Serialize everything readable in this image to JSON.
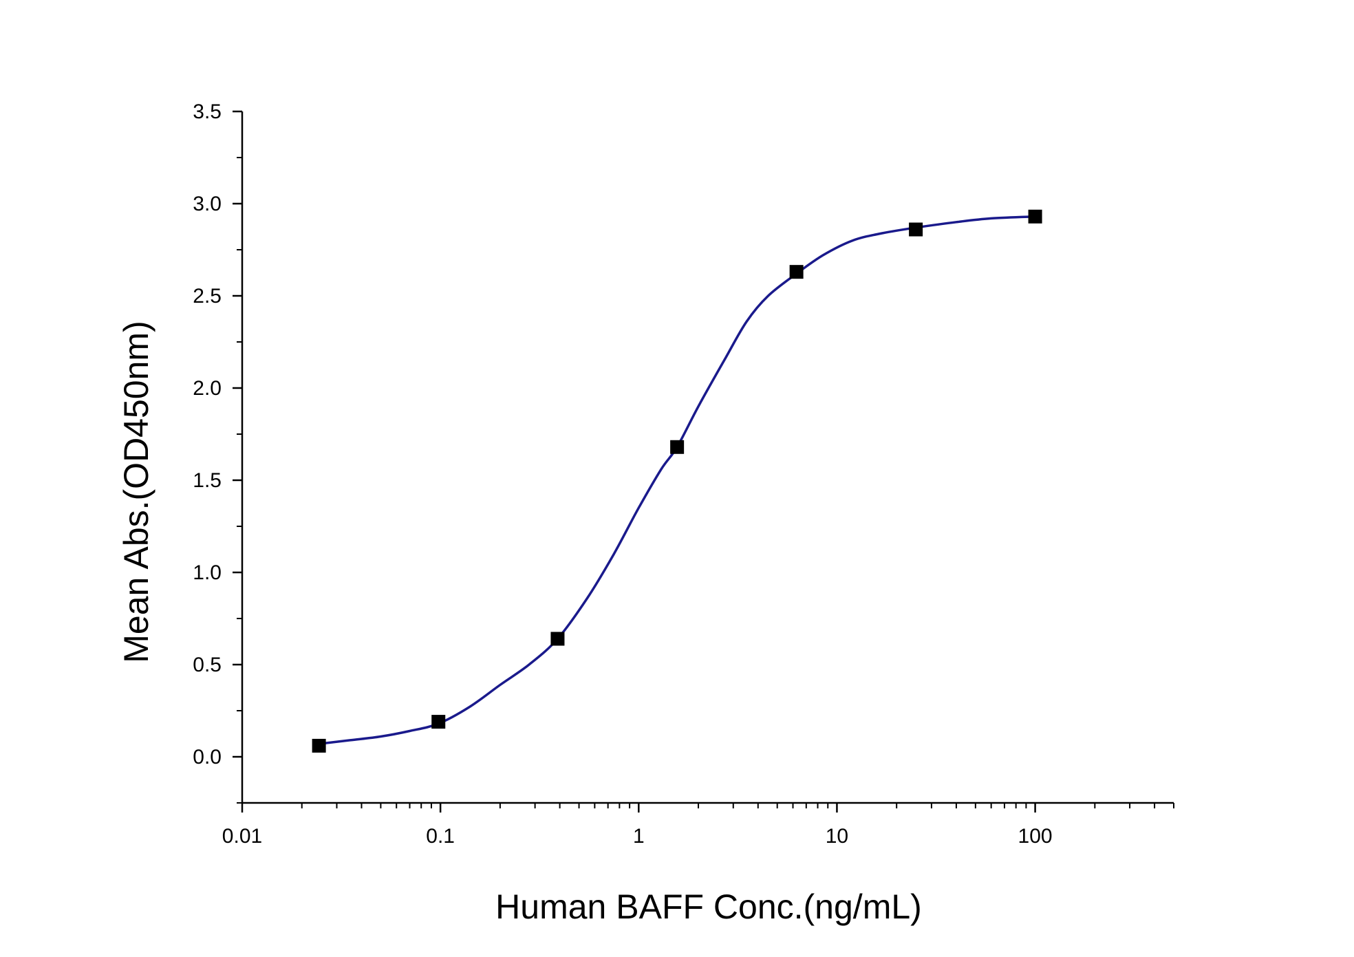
{
  "chart_data": {
    "type": "scatter",
    "title": "",
    "xlabel": "Human BAFF Conc.(ng/mL)",
    "ylabel": "Mean Abs.(OD450nm)",
    "x_scale": "log",
    "xlim": [
      0.01,
      500
    ],
    "ylim": [
      -0.25,
      3.5
    ],
    "x_tick_values": [
      0.01,
      0.1,
      1,
      10,
      100
    ],
    "x_tick_labels": [
      "0.01",
      "0.1",
      "1",
      "10",
      "100"
    ],
    "y_tick_values": [
      0.0,
      0.5,
      1.0,
      1.5,
      2.0,
      2.5,
      3.0,
      3.5
    ],
    "y_tick_labels": [
      "0.0",
      "0.5",
      "1.0",
      "1.5",
      "2.0",
      "2.5",
      "3.0",
      "3.5"
    ],
    "grid": false,
    "legend": "none",
    "series": [
      {
        "type": "scatter",
        "marker": "square",
        "color": "#000000",
        "x": [
          0.0244,
          0.0977,
          0.39,
          1.5625,
          6.25,
          25,
          100
        ],
        "y": [
          0.06,
          0.19,
          0.64,
          1.68,
          2.63,
          2.86,
          2.93
        ]
      },
      {
        "type": "line",
        "fit": "sigmoidal",
        "color": "#1a1a8c",
        "x": [
          0.0244,
          0.035,
          0.05,
          0.07,
          0.0977,
          0.14,
          0.2,
          0.28,
          0.39,
          0.55,
          0.75,
          1.0,
          1.3,
          1.5625,
          2.0,
          2.7,
          3.5,
          4.5,
          6.25,
          8.5,
          12,
          17,
          25,
          40,
          60,
          100
        ],
        "y": [
          0.07,
          0.09,
          0.11,
          0.14,
          0.18,
          0.27,
          0.39,
          0.5,
          0.64,
          0.86,
          1.1,
          1.35,
          1.56,
          1.68,
          1.9,
          2.15,
          2.36,
          2.5,
          2.62,
          2.72,
          2.8,
          2.84,
          2.87,
          2.9,
          2.92,
          2.93
        ]
      }
    ]
  }
}
